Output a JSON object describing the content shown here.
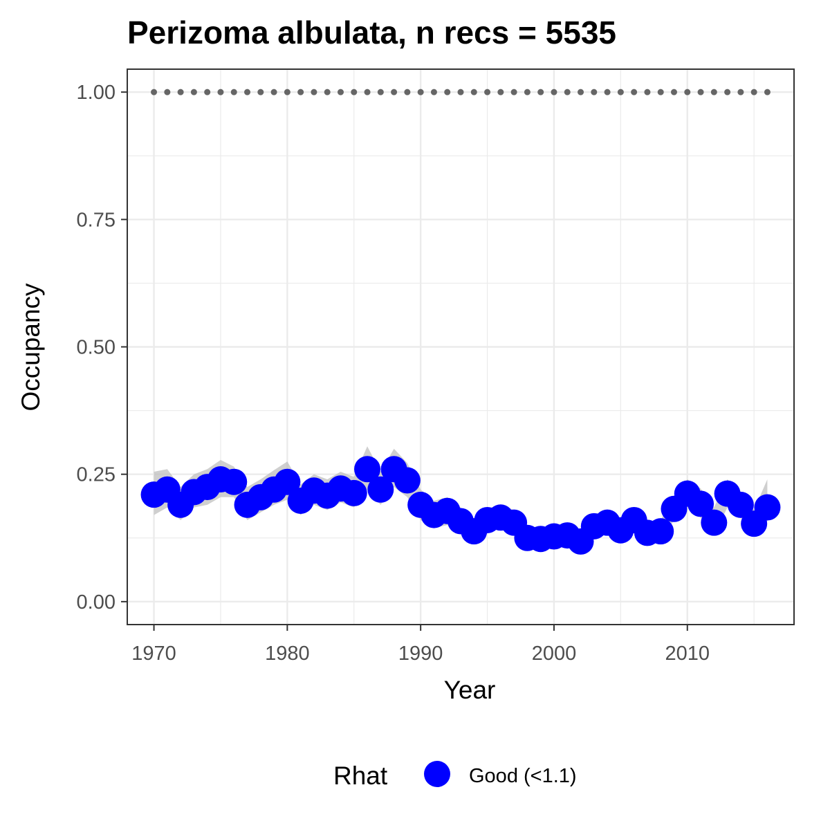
{
  "chart_data": {
    "type": "line",
    "title": "Perizoma albulata, n recs = 5535",
    "xlabel": "Year",
    "ylabel": "Occupancy",
    "xlim": [
      1968,
      2018
    ],
    "ylim": [
      -0.045,
      1.045
    ],
    "x_ticks": [
      1970,
      1980,
      1990,
      2000,
      2010
    ],
    "x_tick_labels": [
      "1970",
      "1980",
      "1990",
      "2000",
      "2010"
    ],
    "y_ticks": [
      0,
      0.25,
      0.5,
      0.75,
      1.0
    ],
    "y_tick_labels": [
      "0.00",
      "0.25",
      "0.50",
      "0.75",
      "1.00"
    ],
    "grid": true,
    "legend": {
      "position": "bottom",
      "title": "Rhat",
      "entries": [
        {
          "label": "Good (<1.1)",
          "color": "#0000ff"
        }
      ]
    },
    "colors": {
      "points": "#0000ff",
      "ribbon": "#bfbfbf",
      "reference": "#666666",
      "panel_border": "#333333",
      "grid": "#ebebeb"
    },
    "series": [
      {
        "x": [
          1970,
          1971,
          1972,
          1973,
          1974,
          1975,
          1976,
          1977,
          1978,
          1979,
          1980,
          1981,
          1982,
          1983,
          1984,
          1985,
          1986,
          1987,
          1988,
          1989,
          1990,
          1991,
          1992,
          1993,
          1994,
          1995,
          1996,
          1997,
          1998,
          1999,
          2000,
          2001,
          2002,
          2003,
          2004,
          2005,
          2006,
          2007,
          2008,
          2009,
          2010,
          2011,
          2012,
          2013,
          2014,
          2015,
          2016
        ],
        "values": [
          0.21,
          0.22,
          0.19,
          0.215,
          0.225,
          0.24,
          0.235,
          0.19,
          0.205,
          0.22,
          0.235,
          0.198,
          0.218,
          0.208,
          0.222,
          0.213,
          0.26,
          0.22,
          0.26,
          0.238,
          0.19,
          0.17,
          0.178,
          0.158,
          0.138,
          0.16,
          0.165,
          0.155,
          0.125,
          0.123,
          0.128,
          0.13,
          0.118,
          0.148,
          0.155,
          0.14,
          0.16,
          0.135,
          0.138,
          0.182,
          0.212,
          0.192,
          0.155,
          0.212,
          0.19,
          0.153,
          0.185
        ],
        "lower": [
          0.17,
          0.185,
          0.16,
          0.185,
          0.19,
          0.205,
          0.205,
          0.16,
          0.175,
          0.19,
          0.2,
          0.17,
          0.19,
          0.18,
          0.195,
          0.185,
          0.22,
          0.19,
          0.225,
          0.205,
          0.16,
          0.145,
          0.15,
          0.135,
          0.12,
          0.14,
          0.145,
          0.135,
          0.108,
          0.107,
          0.112,
          0.113,
          0.103,
          0.128,
          0.135,
          0.122,
          0.14,
          0.118,
          0.12,
          0.16,
          0.185,
          0.165,
          0.13,
          0.185,
          0.165,
          0.13,
          0.158
        ],
        "upper": [
          0.255,
          0.26,
          0.225,
          0.25,
          0.26,
          0.278,
          0.265,
          0.225,
          0.24,
          0.258,
          0.275,
          0.23,
          0.25,
          0.24,
          0.255,
          0.245,
          0.305,
          0.255,
          0.3,
          0.272,
          0.22,
          0.198,
          0.205,
          0.185,
          0.16,
          0.183,
          0.19,
          0.18,
          0.145,
          0.142,
          0.148,
          0.15,
          0.137,
          0.172,
          0.178,
          0.162,
          0.185,
          0.156,
          0.16,
          0.208,
          0.24,
          0.222,
          0.185,
          0.24,
          0.215,
          0.18,
          0.24
        ]
      }
    ],
    "reference_series": {
      "x": [
        1970,
        1971,
        1972,
        1973,
        1974,
        1975,
        1976,
        1977,
        1978,
        1979,
        1980,
        1981,
        1982,
        1983,
        1984,
        1985,
        1986,
        1987,
        1988,
        1989,
        1990,
        1991,
        1992,
        1993,
        1994,
        1995,
        1996,
        1997,
        1998,
        1999,
        2000,
        2001,
        2002,
        2003,
        2004,
        2005,
        2006,
        2007,
        2008,
        2009,
        2010,
        2011,
        2012,
        2013,
        2014,
        2015,
        2016
      ],
      "value": 1.0
    }
  }
}
